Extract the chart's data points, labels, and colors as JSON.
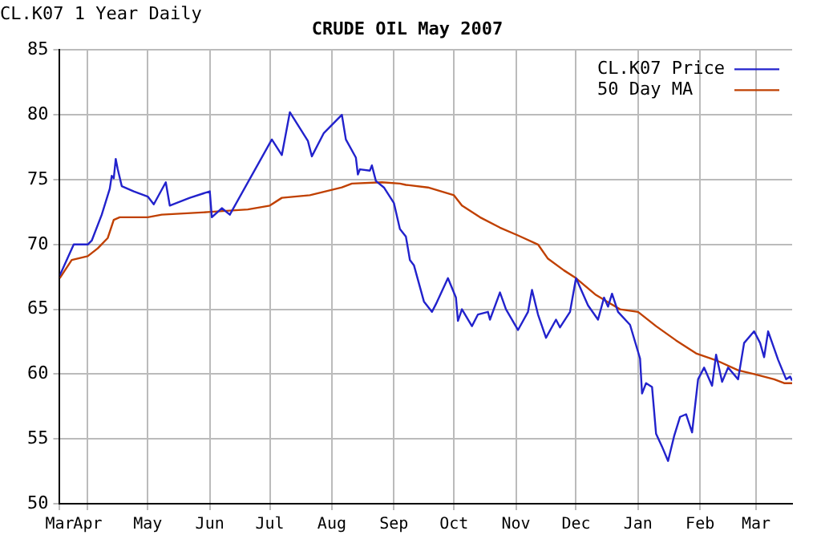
{
  "chart_data": {
    "type": "line",
    "title": "CRUDE OIL May 2007",
    "annotations": [
      "CL.K07 1 Year Daily"
    ],
    "xlim": [
      "2006-03-18",
      "2007-03-19"
    ],
    "xticks": [
      {
        "value": "2006-03-18",
        "label": "Mar"
      },
      {
        "value": "2006-04-01",
        "label": "Apr"
      },
      {
        "value": "2006-05-01",
        "label": "May"
      },
      {
        "value": "2006-06-01",
        "label": "Jun"
      },
      {
        "value": "2006-07-01",
        "label": "Jul"
      },
      {
        "value": "2006-08-01",
        "label": "Aug"
      },
      {
        "value": "2006-09-01",
        "label": "Sep"
      },
      {
        "value": "2006-10-01",
        "label": "Oct"
      },
      {
        "value": "2006-11-01",
        "label": "Nov"
      },
      {
        "value": "2006-12-01",
        "label": "Dec"
      },
      {
        "value": "2007-01-01",
        "label": "Jan"
      },
      {
        "value": "2007-02-01",
        "label": "Feb"
      },
      {
        "value": "2007-03-01",
        "label": "Mar"
      }
    ],
    "ylim": [
      50,
      85
    ],
    "yticks": [
      50,
      55,
      60,
      65,
      70,
      75,
      80,
      85
    ],
    "grid": true,
    "legend": "top right",
    "marker": "none",
    "line_style": "solid",
    "series": [
      {
        "name": "CL.K07 Price",
        "color": "#2222cc",
        "x": [
          "2006-03-18",
          "2006-03-25",
          "2006-04-01",
          "2006-04-03",
          "2006-04-08",
          "2006-04-12",
          "2006-04-13",
          "2006-04-14",
          "2006-04-15",
          "2006-04-16",
          "2006-04-18",
          "2006-04-24",
          "2006-05-01",
          "2006-05-04",
          "2006-05-10",
          "2006-05-12",
          "2006-05-22",
          "2006-06-01",
          "2006-06-02",
          "2006-06-07",
          "2006-06-11",
          "2006-07-02",
          "2006-07-07",
          "2006-07-11",
          "2006-07-20",
          "2006-07-22",
          "2006-07-28",
          "2006-08-06",
          "2006-08-08",
          "2006-08-13",
          "2006-08-14",
          "2006-08-15",
          "2006-08-20",
          "2006-08-21",
          "2006-08-23",
          "2006-08-27",
          "2006-09-01",
          "2006-09-04",
          "2006-09-07",
          "2006-09-09",
          "2006-09-11",
          "2006-09-16",
          "2006-09-20",
          "2006-09-22",
          "2006-09-28",
          "2006-10-02",
          "2006-10-03",
          "2006-10-05",
          "2006-10-10",
          "2006-10-13",
          "2006-10-18",
          "2006-10-19",
          "2006-10-24",
          "2006-10-27",
          "2006-11-02",
          "2006-11-07",
          "2006-11-09",
          "2006-11-12",
          "2006-11-16",
          "2006-11-21",
          "2006-11-23",
          "2006-11-28",
          "2006-12-01",
          "2006-12-07",
          "2006-12-12",
          "2006-12-15",
          "2006-12-17",
          "2006-12-19",
          "2006-12-22",
          "2006-12-28",
          "2007-01-02",
          "2007-01-03",
          "2007-01-05",
          "2007-01-08",
          "2007-01-10",
          "2007-01-13",
          "2007-01-16",
          "2007-01-19",
          "2007-01-22",
          "2007-01-25",
          "2007-01-28",
          "2007-01-31",
          "2007-02-03",
          "2007-02-07",
          "2007-02-09",
          "2007-02-12",
          "2007-02-15",
          "2007-02-20",
          "2007-02-23",
          "2007-02-28",
          "2007-03-03",
          "2007-03-05",
          "2007-03-07",
          "2007-03-12",
          "2007-03-16",
          "2007-03-18",
          "2007-03-19"
        ],
        "values": [
          67.6,
          70.0,
          70.0,
          70.3,
          72.3,
          74.3,
          75.3,
          75.1,
          76.6,
          75.8,
          74.5,
          74.1,
          73.7,
          73.1,
          74.8,
          73.0,
          73.6,
          74.1,
          72.1,
          72.8,
          72.3,
          78.1,
          76.9,
          80.2,
          78.0,
          76.8,
          78.6,
          80.0,
          78.1,
          76.7,
          75.4,
          75.8,
          75.7,
          76.1,
          74.9,
          74.4,
          73.2,
          71.2,
          70.6,
          68.8,
          68.4,
          65.6,
          64.8,
          65.4,
          67.4,
          65.9,
          64.1,
          65.0,
          63.7,
          64.6,
          64.8,
          64.2,
          66.3,
          65.0,
          63.4,
          64.8,
          66.5,
          64.6,
          62.8,
          64.2,
          63.6,
          64.8,
          67.4,
          65.3,
          64.2,
          65.9,
          65.2,
          66.2,
          64.8,
          63.8,
          61.2,
          58.5,
          59.3,
          59.0,
          55.4,
          54.4,
          53.3,
          55.2,
          56.7,
          56.9,
          55.5,
          59.6,
          60.5,
          59.1,
          61.5,
          59.4,
          60.5,
          59.6,
          62.4,
          63.3,
          62.4,
          61.3,
          63.3,
          61.1,
          59.6,
          59.8,
          59.5
        ]
      },
      {
        "name": "50 Day MA",
        "color": "#c04000",
        "x": [
          "2006-03-18",
          "2006-03-24",
          "2006-04-01",
          "2006-04-06",
          "2006-04-11",
          "2006-04-14",
          "2006-04-17",
          "2006-05-01",
          "2006-05-08",
          "2006-05-31",
          "2006-06-20",
          "2006-07-01",
          "2006-07-07",
          "2006-07-21",
          "2006-08-06",
          "2006-08-11",
          "2006-08-26",
          "2006-09-04",
          "2006-09-07",
          "2006-09-18",
          "2006-10-01",
          "2006-10-05",
          "2006-10-14",
          "2006-10-24",
          "2006-11-02",
          "2006-11-12",
          "2006-11-17",
          "2006-11-25",
          "2006-12-01",
          "2006-12-11",
          "2006-12-23",
          "2007-01-01",
          "2007-01-10",
          "2007-01-20",
          "2007-01-30",
          "2007-02-10",
          "2007-02-20",
          "2007-02-28",
          "2007-03-10",
          "2007-03-15",
          "2007-03-19"
        ],
        "values": [
          67.4,
          68.8,
          69.1,
          69.7,
          70.5,
          71.9,
          72.1,
          72.1,
          72.3,
          72.5,
          72.7,
          73.0,
          73.6,
          73.8,
          74.4,
          74.7,
          74.8,
          74.7,
          74.6,
          74.4,
          73.8,
          73.0,
          72.1,
          71.3,
          70.7,
          70.0,
          68.9,
          68.0,
          67.4,
          66.1,
          65.0,
          64.8,
          63.7,
          62.6,
          61.6,
          61.0,
          60.3,
          60.0,
          59.6,
          59.3,
          59.3
        ]
      }
    ]
  }
}
